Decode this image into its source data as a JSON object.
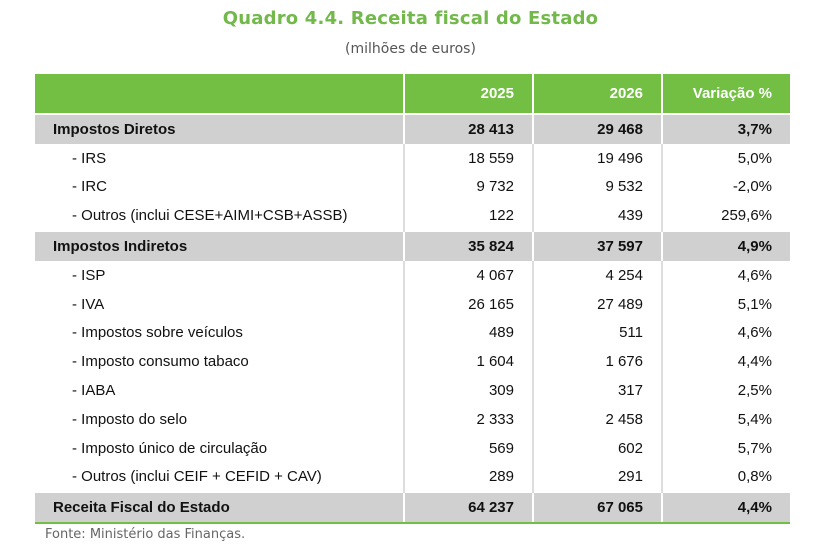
{
  "title": "Quadro 4.4. Receita fiscal do Estado",
  "subtitle": "(milhões de euros)",
  "table": {
    "headers": [
      "",
      "2025",
      "2026",
      "Variação %"
    ],
    "rows": [
      {
        "type": "group",
        "cells": [
          "Impostos Diretos",
          "28 413",
          "29 468",
          "3,7%"
        ]
      },
      {
        "type": "item",
        "cells": [
          "- IRS",
          "18 559",
          "19 496",
          "5,0%"
        ]
      },
      {
        "type": "item",
        "cells": [
          "- IRC",
          "9 732",
          "9 532",
          "-2,0%"
        ]
      },
      {
        "type": "item",
        "cells": [
          "- Outros (inclui CESE+AIMI+CSB+ASSB)",
          "122",
          "439",
          "259,6%"
        ]
      },
      {
        "type": "group",
        "cells": [
          "Impostos Indiretos",
          "35 824",
          "37 597",
          "4,9%"
        ]
      },
      {
        "type": "item",
        "cells": [
          "- ISP",
          "4 067",
          "4 254",
          "4,6%"
        ]
      },
      {
        "type": "item",
        "cells": [
          "- IVA",
          "26 165",
          "27 489",
          "5,1%"
        ]
      },
      {
        "type": "item",
        "cells": [
          "- Impostos sobre veículos",
          "489",
          "511",
          "4,6%"
        ]
      },
      {
        "type": "item",
        "cells": [
          "- Imposto consumo tabaco",
          "1 604",
          "1 676",
          "4,4%"
        ]
      },
      {
        "type": "item",
        "cells": [
          "- IABA",
          "309",
          "317",
          "2,5%"
        ]
      },
      {
        "type": "item",
        "cells": [
          "- Imposto do selo",
          "2 333",
          "2 458",
          "5,4%"
        ]
      },
      {
        "type": "item",
        "cells": [
          "- Imposto único de circulação",
          "569",
          "602",
          "5,7%"
        ]
      },
      {
        "type": "item",
        "cells": [
          "- Outros (inclui CEIF + CEFID + CAV)",
          "289",
          "291",
          "0,8%"
        ]
      },
      {
        "type": "group total",
        "cells": [
          "Receita Fiscal do Estado",
          "64 237",
          "67 065",
          "4,4%"
        ]
      }
    ]
  },
  "source": "Fonte: Ministério das Finanças.",
  "colors": {
    "accent": "#72bf44",
    "title": "#72b84a",
    "group_bg": "#d0d0d0"
  }
}
